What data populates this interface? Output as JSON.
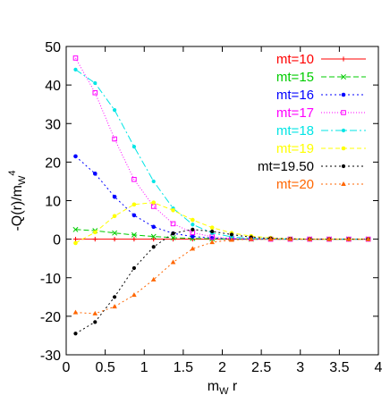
{
  "chart_data": {
    "type": "line",
    "xlabel": "m",
    "xlabel_sub": "W",
    "xlabel_tail": " r",
    "ylabel": "-Q(r)/m",
    "ylabel_sub": "W",
    "ylabel_sup": "4",
    "xlim": [
      0,
      4
    ],
    "ylim": [
      -30,
      50
    ],
    "xticks": [
      0,
      0.5,
      1,
      1.5,
      2,
      2.5,
      3,
      3.5,
      4
    ],
    "xtick_labels": [
      "0",
      "0.5",
      "1",
      "1.5",
      "2",
      "2.5",
      "3",
      "3.5",
      "4"
    ],
    "yticks": [
      -30,
      -20,
      -10,
      0,
      10,
      20,
      30,
      40,
      50
    ],
    "ytick_labels": [
      "-30",
      "-20",
      "-10",
      "0",
      "10",
      "20",
      "30",
      "40",
      "50"
    ],
    "grid": false,
    "legend_position": "top-right",
    "series": [
      {
        "name": "mt=10",
        "color": "#ff0000",
        "marker": "plus",
        "dash": "",
        "x": [
          0.12,
          0.37,
          0.62,
          0.87,
          1.12,
          1.37,
          1.62,
          1.87,
          2.12,
          2.37,
          2.62,
          2.87,
          3.12,
          3.37,
          3.62,
          3.87
        ],
        "y": [
          0,
          0,
          0,
          0,
          0,
          0,
          0,
          0,
          0,
          0,
          0,
          0,
          0,
          0,
          0,
          0
        ]
      },
      {
        "name": "mt=15",
        "color": "#00cc00",
        "marker": "x",
        "dash": "6,3",
        "x": [
          0.12,
          0.37,
          0.62,
          0.87,
          1.12,
          1.37,
          1.62,
          1.87,
          2.12,
          2.37,
          2.62,
          2.87,
          3.12,
          3.37,
          3.62,
          3.87
        ],
        "y": [
          2.5,
          2.2,
          1.6,
          1.1,
          0.7,
          0.4,
          0.2,
          0.1,
          0,
          0,
          0,
          0,
          0,
          0,
          0,
          0
        ]
      },
      {
        "name": "mt=16",
        "color": "#0000ff",
        "marker": "star",
        "dash": "2,3",
        "x": [
          0.12,
          0.37,
          0.62,
          0.87,
          1.12,
          1.37,
          1.62,
          1.87,
          2.12,
          2.37,
          2.62,
          2.87,
          3.12,
          3.37,
          3.62,
          3.87
        ],
        "y": [
          21.5,
          17,
          11,
          6.2,
          3.2,
          1.5,
          0.7,
          0.3,
          0.1,
          0,
          0,
          0,
          0,
          0,
          0,
          0
        ]
      },
      {
        "name": "mt=17",
        "color": "#ff00ff",
        "marker": "square",
        "dash": "1,2",
        "x": [
          0.12,
          0.37,
          0.62,
          0.87,
          1.12,
          1.37,
          1.62,
          1.87,
          2.12,
          2.37,
          2.62,
          2.87,
          3.12,
          3.37,
          3.62,
          3.87
        ],
        "y": [
          47,
          38,
          26,
          15.5,
          8.5,
          4,
          1.7,
          0.6,
          0.2,
          0.1,
          0,
          0,
          0,
          0,
          0,
          0
        ]
      },
      {
        "name": "mt=18",
        "color": "#00e5e5",
        "marker": "dot",
        "dash": "8,3,2,3",
        "x": [
          0.12,
          0.37,
          0.62,
          0.87,
          1.12,
          1.37,
          1.62,
          1.87,
          2.12,
          2.37,
          2.62,
          2.87,
          3.12,
          3.37,
          3.62,
          3.87
        ],
        "y": [
          44,
          40.5,
          33.5,
          24,
          15,
          8,
          3.8,
          1.6,
          0.6,
          0.2,
          0.1,
          0,
          0,
          0,
          0,
          0
        ]
      },
      {
        "name": "mt=19",
        "color": "#ffff00",
        "marker": "star",
        "dash": "5,3",
        "x": [
          0.12,
          0.37,
          0.62,
          0.87,
          1.12,
          1.37,
          1.62,
          1.87,
          2.12,
          2.37,
          2.62,
          2.87,
          3.12,
          3.37,
          3.62,
          3.87
        ],
        "y": [
          -1,
          1.8,
          6,
          9,
          9.5,
          7.5,
          5,
          3,
          1.6,
          0.8,
          0.3,
          0.1,
          0,
          0,
          0,
          0
        ]
      },
      {
        "name": "mt=19.50",
        "color": "#000000",
        "marker": "dot",
        "dash": "2,3",
        "x": [
          0.12,
          0.37,
          0.62,
          0.87,
          1.12,
          1.37,
          1.62,
          1.87,
          2.12,
          2.37,
          2.62,
          2.87,
          3.12,
          3.37,
          3.62,
          3.87
        ],
        "y": [
          -24.5,
          -21.5,
          -15,
          -7.5,
          -2,
          1.5,
          2.5,
          2,
          1.2,
          0.5,
          0.2,
          0.1,
          0,
          0,
          0,
          0
        ]
      },
      {
        "name": "mt=20",
        "color": "#ff6600",
        "marker": "triangle",
        "dash": "2,3",
        "x": [
          0.12,
          0.37,
          0.62,
          0.87,
          1.12,
          1.37,
          1.62,
          1.87,
          2.12,
          2.37,
          2.62,
          2.87,
          3.12,
          3.37,
          3.62,
          3.87
        ],
        "y": [
          -19,
          -19.3,
          -17.5,
          -14.5,
          -10.5,
          -6,
          -2.5,
          -0.8,
          -0.2,
          0,
          0,
          0,
          0,
          0,
          0,
          0
        ]
      }
    ]
  }
}
